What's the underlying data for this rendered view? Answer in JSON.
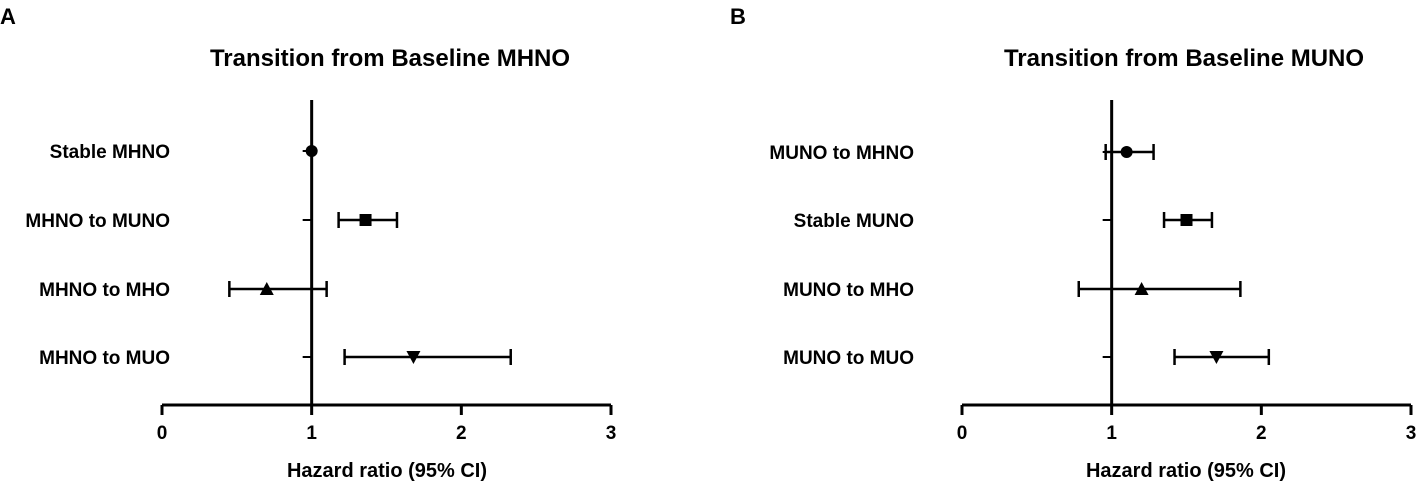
{
  "chart_data": [
    {
      "type": "forest",
      "panel": "A",
      "title": "Transition from Baseline MHNO",
      "xlabel": "Hazard ratio (95% CI)",
      "ylabel": "",
      "xlim": [
        0,
        3
      ],
      "xticks": [
        0,
        1,
        2,
        3
      ],
      "reference_line": 1,
      "grid": false,
      "rows": [
        {
          "label": "Stable MHNO",
          "hr": 1.0,
          "ci": [
            1.0,
            1.0
          ],
          "marker": "circle"
        },
        {
          "label": "MHNO to MUNO",
          "hr": 1.36,
          "ci": [
            1.18,
            1.57
          ],
          "marker": "square"
        },
        {
          "label": "MHNO to MHO",
          "hr": 0.7,
          "ci": [
            0.45,
            1.1
          ],
          "marker": "triangle-up"
        },
        {
          "label": "MHNO to MUO",
          "hr": 1.68,
          "ci": [
            1.22,
            2.33
          ],
          "marker": "triangle-down"
        }
      ]
    },
    {
      "type": "forest",
      "panel": "B",
      "title": "Transition from Baseline MUNO",
      "xlabel": "Hazard ratio (95% CI)",
      "ylabel": "",
      "xlim": [
        0,
        3
      ],
      "xticks": [
        0,
        1,
        2,
        3
      ],
      "reference_line": 1,
      "grid": false,
      "rows": [
        {
          "label": "MUNO to MHNO",
          "hr": 1.1,
          "ci": [
            0.96,
            1.28
          ],
          "marker": "circle"
        },
        {
          "label": "Stable MUNO",
          "hr": 1.5,
          "ci": [
            1.35,
            1.67
          ],
          "marker": "square"
        },
        {
          "label": "MUNO to MHO",
          "hr": 1.2,
          "ci": [
            0.78,
            1.86
          ],
          "marker": "triangle-up"
        },
        {
          "label": "MUNO to MUO",
          "hr": 1.7,
          "ci": [
            1.42,
            2.05
          ],
          "marker": "triangle-down"
        }
      ]
    }
  ]
}
